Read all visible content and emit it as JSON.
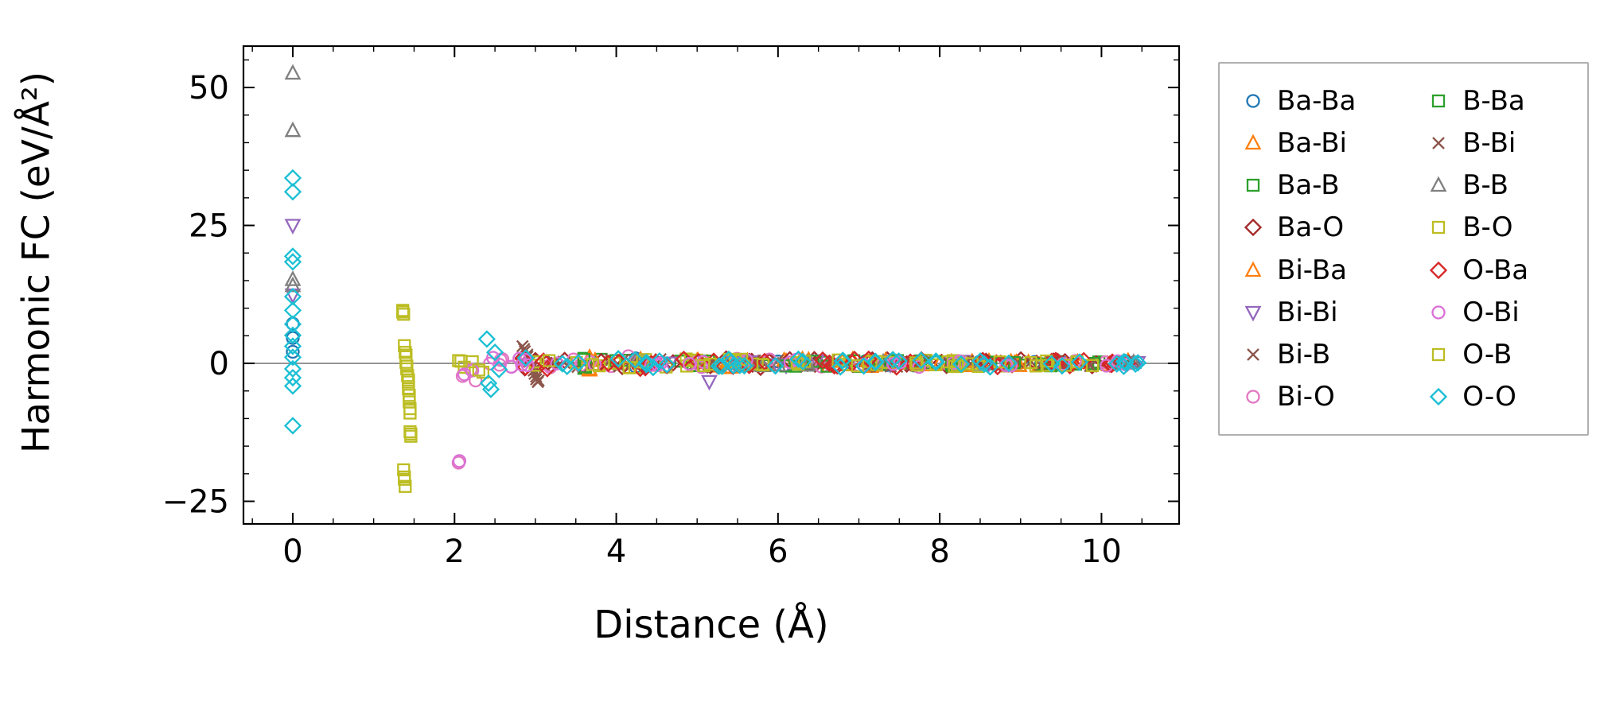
{
  "chart_data": {
    "type": "scatter",
    "title": "",
    "xlabel": "Distance (Å)",
    "ylabel": "Harmonic FC (eV/Å²)",
    "xlim": [
      -0.61,
      10.96
    ],
    "ylim": [
      -29.1,
      57.5
    ],
    "grid": false,
    "zero_line": true,
    "zero_line_color": "#808080",
    "legend_position": "outside-right",
    "x_ticks": [
      {
        "v": 0,
        "label": "0"
      },
      {
        "v": 2,
        "label": "2"
      },
      {
        "v": 4,
        "label": "4"
      },
      {
        "v": 6,
        "label": "6"
      },
      {
        "v": 8,
        "label": "8"
      },
      {
        "v": 10,
        "label": "10"
      }
    ],
    "y_ticks": [
      {
        "v": -25,
        "label": "−25"
      },
      {
        "v": 0,
        "label": "0"
      },
      {
        "v": 25,
        "label": "25"
      },
      {
        "v": 50,
        "label": "50"
      }
    ],
    "x_minor_step": 0.5,
    "y_minor_step": 5,
    "series": [
      {
        "name": "Ba-Ba",
        "marker": "circle",
        "color": "#1f77b4",
        "points": [
          [
            0,
            7.2
          ],
          [
            0,
            4.6
          ],
          [
            0,
            2.1
          ],
          [
            4.24,
            0.9
          ],
          [
            4.24,
            -0.6
          ],
          [
            6.0,
            0.35
          ],
          [
            7.35,
            -0.3
          ],
          [
            8.49,
            0.25
          ],
          [
            9.49,
            -0.2
          ],
          [
            10.39,
            0.12
          ]
        ],
        "bands": [
          {
            "x0": 4.2,
            "x1": 10.45,
            "n": 16,
            "amp": 0.5
          }
        ]
      },
      {
        "name": "Ba-Bi",
        "marker": "triangle-up",
        "color": "#ff7f0e",
        "points": [
          [
            3.67,
            1.1
          ],
          [
            3.67,
            -1.2
          ],
          [
            4.3,
            0.7
          ],
          [
            5.2,
            -0.5
          ],
          [
            6.1,
            0.4
          ],
          [
            7.2,
            -0.35
          ],
          [
            8.4,
            0.3
          ],
          [
            9.3,
            -0.25
          ],
          [
            10.3,
            0.15
          ]
        ],
        "bands": [
          {
            "x0": 3.6,
            "x1": 10.4,
            "n": 24,
            "amp": 0.8
          }
        ]
      },
      {
        "name": "Ba-B",
        "marker": "square",
        "color": "#2ca02c",
        "points": [
          [
            3.6,
            0.9
          ],
          [
            3.6,
            -0.9
          ],
          [
            4.8,
            0.4
          ],
          [
            6.4,
            -0.3
          ]
        ],
        "bands": [
          {
            "x0": 3.5,
            "x1": 10.3,
            "n": 22,
            "amp": 0.7
          }
        ]
      },
      {
        "name": "Ba-O",
        "marker": "diamond",
        "color": "#a52a2a",
        "points": [
          [
            2.85,
            1.0
          ],
          [
            2.87,
            -0.8
          ],
          [
            3.0,
            0.5
          ],
          [
            3.2,
            -0.4
          ]
        ],
        "bands": [
          {
            "x0": 2.8,
            "x1": 10.45,
            "n": 38,
            "amp": 0.9
          }
        ]
      },
      {
        "name": "Bi-Ba",
        "marker": "triangle-up",
        "color": "#ff7f0e",
        "points": [
          [
            3.67,
            0.9
          ],
          [
            3.67,
            -1.0
          ],
          [
            5.0,
            0.5
          ]
        ],
        "bands": [
          {
            "x0": 3.6,
            "x1": 10.4,
            "n": 24,
            "amp": 0.8
          }
        ]
      },
      {
        "name": "Bi-Bi",
        "marker": "triangle-down",
        "color": "#9467bd",
        "points": [
          [
            0,
            25.0
          ],
          [
            0,
            12.4
          ],
          [
            5.15,
            -3.3
          ],
          [
            4.3,
            0.5
          ],
          [
            6.1,
            -0.4
          ],
          [
            7.4,
            0.3
          ],
          [
            8.6,
            -0.25
          ],
          [
            10.45,
            0.15
          ]
        ],
        "bands": [
          {
            "x0": 4.2,
            "x1": 10.45,
            "n": 12,
            "amp": 0.5
          }
        ]
      },
      {
        "name": "Bi-B",
        "marker": "x",
        "color": "#8c564b",
        "points": [
          [
            2.84,
            3.1
          ],
          [
            2.87,
            2.2
          ],
          [
            2.9,
            1.2
          ],
          [
            2.93,
            0.3
          ],
          [
            2.96,
            -0.8
          ],
          [
            2.99,
            -1.9
          ],
          [
            3.01,
            -2.9
          ],
          [
            3.03,
            -3.4
          ]
        ],
        "bands": [
          {
            "x0": 3.2,
            "x1": 10.4,
            "n": 26,
            "amp": 0.8
          }
        ]
      },
      {
        "name": "Bi-O",
        "marker": "circle",
        "color": "#e377c2",
        "points": [
          [
            2.05,
            -18.0
          ],
          [
            2.1,
            -2.3
          ],
          [
            2.2,
            -1.1
          ],
          [
            2.26,
            -3.1
          ],
          [
            4.15,
            1.3
          ],
          [
            10.2,
            0.3
          ]
        ],
        "bands": [
          {
            "x0": 2.3,
            "x1": 10.3,
            "n": 28,
            "amp": 0.9
          }
        ]
      },
      {
        "name": "B-Ba",
        "marker": "square",
        "color": "#2ca02c",
        "points": [
          [
            3.6,
            0.7
          ],
          [
            3.62,
            -0.6
          ]
        ],
        "bands": [
          {
            "x0": 3.5,
            "x1": 10.3,
            "n": 22,
            "amp": 0.7
          }
        ]
      },
      {
        "name": "B-Bi",
        "marker": "x",
        "color": "#8c564b",
        "points": [
          [
            2.86,
            2.6
          ],
          [
            2.9,
            1.6
          ],
          [
            2.94,
            0.6
          ],
          [
            2.98,
            -1.3
          ],
          [
            3.01,
            -2.4
          ],
          [
            3.04,
            -3.1
          ]
        ],
        "bands": [
          {
            "x0": 3.2,
            "x1": 10.4,
            "n": 26,
            "amp": 0.8
          }
        ]
      },
      {
        "name": "B-B",
        "marker": "triangle-up",
        "color": "#7f7f7f",
        "points": [
          [
            0,
            52.6
          ],
          [
            0,
            42.2
          ],
          [
            0,
            15.2
          ],
          [
            0,
            14.1
          ],
          [
            4.24,
            0.5
          ],
          [
            6.0,
            -0.3
          ],
          [
            7.3,
            0.25
          ],
          [
            8.5,
            -0.2
          ]
        ],
        "bands": [
          {
            "x0": 4.2,
            "x1": 10.4,
            "n": 10,
            "amp": 0.5
          }
        ]
      },
      {
        "name": "B-O",
        "marker": "square",
        "color": "#bcbd22",
        "points": [
          [
            1.36,
            9.6
          ],
          [
            1.37,
            8.9
          ],
          [
            1.38,
            3.2
          ],
          [
            1.4,
            1.5
          ],
          [
            1.4,
            0.2
          ],
          [
            1.41,
            -1.0
          ],
          [
            1.42,
            -2.2
          ],
          [
            1.43,
            -3.4
          ],
          [
            1.43,
            -4.6
          ],
          [
            1.44,
            -5.8
          ],
          [
            1.44,
            -7.0
          ],
          [
            1.45,
            -8.2
          ],
          [
            1.45,
            -12.4
          ],
          [
            1.46,
            -13.2
          ],
          [
            1.37,
            -19.3
          ],
          [
            1.38,
            -21.0
          ],
          [
            1.39,
            -22.3
          ],
          [
            2.05,
            0.5
          ],
          [
            2.12,
            -0.7
          ],
          [
            2.22,
            0.3
          ],
          [
            2.35,
            -1.6
          ]
        ],
        "bands": [
          {
            "x0": 2.4,
            "x1": 10.4,
            "n": 30,
            "amp": 0.8
          }
        ]
      },
      {
        "name": "O-Ba",
        "marker": "diamond",
        "color": "#d62728",
        "points": [
          [
            2.85,
            0.8
          ],
          [
            2.88,
            -0.7
          ],
          [
            3.1,
            0.4
          ]
        ],
        "bands": [
          {
            "x0": 2.8,
            "x1": 10.45,
            "n": 38,
            "amp": 0.9
          }
        ]
      },
      {
        "name": "O-Bi",
        "marker": "circle",
        "color": "#da70d6",
        "points": [
          [
            2.06,
            -17.7
          ],
          [
            2.12,
            -2.0
          ],
          [
            2.22,
            -1.3
          ],
          [
            10.2,
            0.4
          ],
          [
            10.3,
            -0.2
          ]
        ],
        "bands": [
          {
            "x0": 2.3,
            "x1": 10.3,
            "n": 28,
            "amp": 0.9
          }
        ]
      },
      {
        "name": "O-B",
        "marker": "square",
        "color": "#bcbd22",
        "points": [
          [
            1.36,
            9.3
          ],
          [
            1.39,
            2.0
          ],
          [
            1.41,
            -0.5
          ],
          [
            1.43,
            -3.0
          ],
          [
            1.44,
            -6.5
          ],
          [
            1.45,
            -9.0
          ],
          [
            1.46,
            -12.8
          ],
          [
            1.38,
            -20.6
          ],
          [
            2.08,
            0.4
          ],
          [
            2.3,
            -1.2
          ]
        ],
        "bands": [
          {
            "x0": 2.4,
            "x1": 10.4,
            "n": 28,
            "amp": 0.8
          }
        ]
      },
      {
        "name": "O-O",
        "marker": "diamond",
        "color": "#1bbfd4",
        "points": [
          [
            0,
            33.6
          ],
          [
            0,
            31.1
          ],
          [
            0,
            19.4
          ],
          [
            0,
            18.4
          ],
          [
            0,
            12.1
          ],
          [
            0,
            9.6
          ],
          [
            0,
            7.1
          ],
          [
            0,
            5.1
          ],
          [
            0,
            3.1
          ],
          [
            0,
            1.1
          ],
          [
            0,
            -1.0
          ],
          [
            0,
            -2.6
          ],
          [
            0,
            -4.1
          ],
          [
            0,
            -11.3
          ],
          [
            2.4,
            4.4
          ],
          [
            2.42,
            -3.6
          ],
          [
            2.45,
            -4.7
          ],
          [
            2.5,
            2.0
          ],
          [
            2.55,
            -1.1
          ],
          [
            10.3,
            0.2
          ],
          [
            10.42,
            -0.12
          ],
          [
            10.45,
            0.1
          ]
        ],
        "bands": [
          {
            "x0": 2.6,
            "x1": 10.45,
            "n": 44,
            "amp": 0.9
          }
        ]
      }
    ]
  }
}
